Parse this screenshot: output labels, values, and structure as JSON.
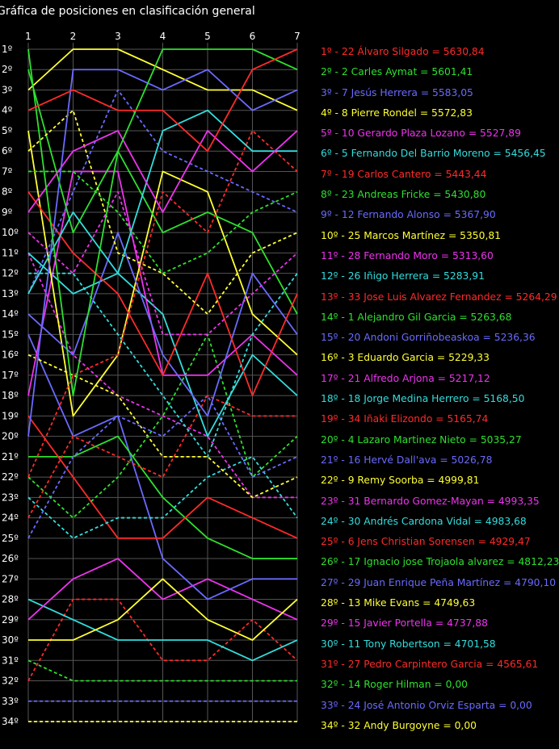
{
  "chart_data": {
    "type": "line",
    "title": "Gráfica de posiciones en clasificación general",
    "x": [
      "1",
      "2",
      "3",
      "4",
      "5",
      "6",
      "7"
    ],
    "y_labels": [
      "1º",
      "2º",
      "3º",
      "4º",
      "5º",
      "6º",
      "7º",
      "8º",
      "9º",
      "10º",
      "11º",
      "12º",
      "13º",
      "14º",
      "15º",
      "16º",
      "17º",
      "18º",
      "19º",
      "20º",
      "21º",
      "22º",
      "23º",
      "24º",
      "25º",
      "26º",
      "27º",
      "28º",
      "29º",
      "30º",
      "31º",
      "32º",
      "33º",
      "34º"
    ],
    "ylim": [
      1,
      34
    ],
    "y_inverted": true,
    "grid": true,
    "legend_position": "right",
    "series": [
      {
        "name": "1º - 22 Álvaro Silgado = 5630,84",
        "color": "#ff2a2a",
        "dash": false,
        "values": [
          4,
          3,
          4,
          4,
          6,
          2,
          1
        ]
      },
      {
        "name": "2º - 2 Carles Aymat = 5601,41",
        "color": "#2ee02e",
        "dash": false,
        "values": [
          1,
          18,
          6,
          1,
          1,
          1,
          2
        ]
      },
      {
        "name": "3º - 7 Jesús Herrera = 5583,05",
        "color": "#6a6aff",
        "dash": false,
        "values": [
          20,
          2,
          2,
          3,
          2,
          4,
          3
        ]
      },
      {
        "name": "4º - 8 Pierre Rondel = 5572,83",
        "color": "#ffff33",
        "dash": false,
        "values": [
          3,
          1,
          1,
          2,
          3,
          3,
          4
        ]
      },
      {
        "name": "5º - 10 Gerardo Plaza Lozano = 5527,89",
        "color": "#ee33ee",
        "dash": false,
        "values": [
          9,
          6,
          5,
          9,
          5,
          7,
          5
        ]
      },
      {
        "name": "6º - 5 Fernando Del Barrio Moreno = 5456,45",
        "color": "#33dddd",
        "dash": false,
        "values": [
          13,
          9,
          12,
          5,
          4,
          6,
          6
        ]
      },
      {
        "name": "7º - 19 Carlos Cantero = 5443,44",
        "color": "#ff2a2a",
        "dash": true,
        "values": [
          22,
          17,
          16,
          8,
          10,
          5,
          7
        ]
      },
      {
        "name": "8º - 23 Andreas Fricke = 5430,80",
        "color": "#2ee02e",
        "dash": true,
        "values": [
          7,
          7,
          9,
          12,
          11,
          9,
          8
        ]
      },
      {
        "name": "9º - 12 Fernando Alonso = 5367,90",
        "color": "#6a6aff",
        "dash": true,
        "values": [
          13,
          8,
          3,
          6,
          7,
          8,
          9
        ]
      },
      {
        "name": "10º - 25 Marcos Martínez = 5350,81",
        "color": "#ffff33",
        "dash": true,
        "values": [
          6,
          4,
          11,
          12,
          14,
          11,
          10
        ]
      },
      {
        "name": "11º - 28 Fernando Moro = 5313,60",
        "color": "#ee33ee",
        "dash": true,
        "values": [
          10,
          12,
          8,
          15,
          15,
          13,
          11
        ]
      },
      {
        "name": "12º - 26 Iñigo Herrera = 5283,91",
        "color": "#33dddd",
        "dash": true,
        "values": [
          12,
          12,
          15,
          18,
          21,
          15,
          12
        ]
      },
      {
        "name": "13º - 33 Jose Luis Alvarez Fernandez = 5264,29",
        "color": "#ff2a2a",
        "dash": false,
        "values": [
          8,
          11,
          13,
          17,
          12,
          18,
          13
        ]
      },
      {
        "name": "14º - 1 Alejandro Gil Garcia = 5263,68",
        "color": "#2ee02e",
        "dash": false,
        "values": [
          2,
          10,
          6,
          10,
          9,
          10,
          14
        ]
      },
      {
        "name": "15º - 20 Andoni Gorriñobeaskoa = 5236,36",
        "color": "#6a6aff",
        "dash": false,
        "values": [
          14,
          16,
          10,
          16,
          19,
          12,
          15
        ]
      },
      {
        "name": "16º - 3 Eduardo Garcia = 5229,33",
        "color": "#ffff33",
        "dash": false,
        "values": [
          5,
          19,
          16,
          7,
          8,
          14,
          16
        ]
      },
      {
        "name": "17º - 21 Alfredo Arjona = 5217,12",
        "color": "#ee33ee",
        "dash": false,
        "values": [
          18,
          7,
          7,
          17,
          17,
          15,
          17
        ]
      },
      {
        "name": "18º - 18 Jorge Medina Herrero = 5168,50",
        "color": "#33dddd",
        "dash": false,
        "values": [
          11,
          13,
          12,
          14,
          20,
          16,
          18
        ]
      },
      {
        "name": "19º - 34 Iñaki Elizondo = 5165,74",
        "color": "#ff2a2a",
        "dash": true,
        "values": [
          24,
          20,
          21,
          22,
          18,
          19,
          19
        ]
      },
      {
        "name": "20º - 4 Lazaro Martinez Nieto = 5035,27",
        "color": "#2ee02e",
        "dash": true,
        "values": [
          22,
          24,
          22,
          19,
          15,
          22,
          20
        ]
      },
      {
        "name": "21º - 16 Hervé Dall'ava = 5026,78",
        "color": "#6a6aff",
        "dash": true,
        "values": [
          25,
          21,
          19,
          20,
          18,
          22,
          21
        ]
      },
      {
        "name": "22º - 9 Remy Soorba = 4999,81",
        "color": "#ffff33",
        "dash": true,
        "values": [
          16,
          17,
          18,
          21,
          21,
          23,
          22
        ]
      },
      {
        "name": "23º - 31 Bernardo Gomez-Mayan = 4993,35",
        "color": "#ee33ee",
        "dash": true,
        "values": [
          11,
          16,
          18,
          19,
          20,
          23,
          23
        ]
      },
      {
        "name": "24º - 30 Andrés Cardona Vidal = 4983,68",
        "color": "#33dddd",
        "dash": true,
        "values": [
          23,
          25,
          24,
          24,
          22,
          21,
          24
        ]
      },
      {
        "name": "25º - 6 Jens Christian Sorensen = 4929,47",
        "color": "#ff2a2a",
        "dash": false,
        "values": [
          19,
          22,
          25,
          25,
          23,
          24,
          25
        ]
      },
      {
        "name": "26º - 17 Ignacio jose Trojaola alvarez = 4812,23",
        "color": "#2ee02e",
        "dash": false,
        "values": [
          21,
          21,
          20,
          23,
          25,
          26,
          26
        ]
      },
      {
        "name": "27º - 29 Juan Enrique Peña Martínez = 4790,10",
        "color": "#6a6aff",
        "dash": false,
        "values": [
          15,
          20,
          19,
          26,
          28,
          27,
          27
        ]
      },
      {
        "name": "28º - 13 Mike Evans = 4749,63",
        "color": "#ffff33",
        "dash": false,
        "values": [
          30,
          30,
          29,
          27,
          29,
          30,
          28
        ]
      },
      {
        "name": "29º - 15 Javier Portella = 4737,88",
        "color": "#ee33ee",
        "dash": false,
        "values": [
          29,
          27,
          26,
          28,
          27,
          28,
          29
        ]
      },
      {
        "name": "30º - 11 Tony Robertson = 4701,58",
        "color": "#33dddd",
        "dash": false,
        "values": [
          28,
          29,
          30,
          30,
          30,
          31,
          30
        ]
      },
      {
        "name": "31º - 27 Pedro Carpintero Garcia = 4565,61",
        "color": "#ff2a2a",
        "dash": true,
        "values": [
          32,
          28,
          28,
          31,
          31,
          29,
          31
        ]
      },
      {
        "name": "32º - 14 Roger Hilman = 0,00",
        "color": "#2ee02e",
        "dash": true,
        "values": [
          31,
          32,
          32,
          32,
          32,
          32,
          32
        ]
      },
      {
        "name": "33º - 24 José Antonio Orviz Esparta = 0,00",
        "color": "#6a6aff",
        "dash": true,
        "values": [
          33,
          33,
          33,
          33,
          33,
          33,
          33
        ]
      },
      {
        "name": "34º - 32 Andy Burgoyne = 0,00",
        "color": "#ffff33",
        "dash": true,
        "values": [
          34,
          34,
          34,
          34,
          34,
          34,
          34
        ]
      }
    ]
  }
}
